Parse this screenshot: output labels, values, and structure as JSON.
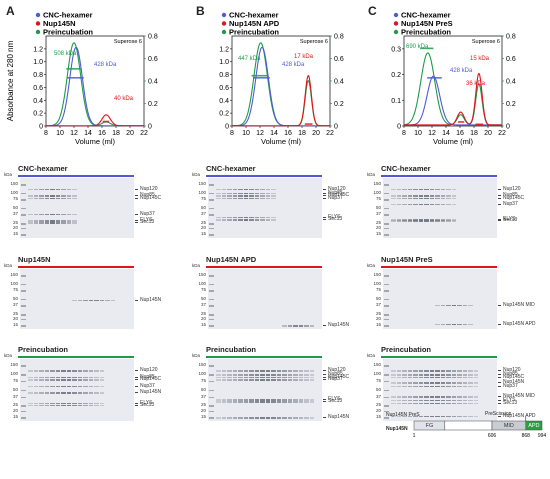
{
  "panels": [
    {
      "letter": "A",
      "legend": [
        {
          "label": "CNC-hexamer",
          "color": "#4f5bd5"
        },
        {
          "label": "Nup145N",
          "color": "#e3121b"
        },
        {
          "label": "Preincubation",
          "color": "#1e9b4a"
        }
      ],
      "column": "Superose 6",
      "peak_labels": [
        {
          "text": "508 kDa",
          "color": "#1e9b4a"
        },
        {
          "text": "428 kDa",
          "color": "#4f5bd5"
        },
        {
          "text": "40 kDa",
          "color": "#e3121b"
        }
      ]
    },
    {
      "letter": "B",
      "legend": [
        {
          "label": "CNC-hexamer",
          "color": "#4f5bd5"
        },
        {
          "label": "Nup145N APD",
          "color": "#e3121b"
        },
        {
          "label": "Preincubation",
          "color": "#1e9b4a"
        }
      ],
      "column": "Superose 6",
      "peak_labels": [
        {
          "text": "447 kDa",
          "color": "#1e9b4a"
        },
        {
          "text": "428 kDa",
          "color": "#4f5bd5"
        },
        {
          "text": "17 kDa",
          "color": "#e3121b"
        }
      ]
    },
    {
      "letter": "C",
      "legend": [
        {
          "label": "CNC-hexamer",
          "color": "#4f5bd5"
        },
        {
          "label": "Nup145N PreS",
          "color": "#e3121b"
        },
        {
          "label": "Preincubation",
          "color": "#1e9b4a"
        }
      ],
      "column": "Superose 6",
      "peak_labels": [
        {
          "text": "690 kDa",
          "color": "#1e9b4a"
        },
        {
          "text": "428 kDa",
          "color": "#4f5bd5"
        },
        {
          "text": "36 kDa",
          "color": "#e3121b"
        },
        {
          "text": "15 kDa",
          "color": "#e3121b"
        }
      ]
    }
  ],
  "axes": {
    "ylabel_left": "Absorbance at 280 nm",
    "ylabel_right": "Molecular Mass (MDa)",
    "xlabel": "Volume (ml)"
  },
  "chart_data": [
    {
      "type": "line",
      "title": "",
      "xlabel": "Volume (ml)",
      "ylabel": "Absorbance at 280 nm",
      "y2label": "Molecular Mass (MDa)",
      "xlim": [
        8,
        22
      ],
      "ylim": [
        0,
        1.4
      ],
      "y2lim": [
        0,
        0.8
      ],
      "xticks": [
        8,
        10,
        12,
        14,
        16,
        18,
        20,
        22
      ],
      "yticks": [
        0,
        0.2,
        0.4,
        0.6,
        0.8,
        1.0,
        1.2
      ],
      "y2ticks": [
        0,
        0.2,
        0.4,
        0.6,
        0.8
      ],
      "yticklabels": [
        "0",
        "0.2",
        "0.4",
        "0.6",
        "0.8",
        "1.0",
        "1.2"
      ],
      "series": [
        {
          "name": "CNC-hexamer",
          "color": "#4f5bd5",
          "peaks": [
            {
              "center": 12.3,
              "height": 1.22,
              "width": 0.9
            }
          ]
        },
        {
          "name": "Nup145N",
          "color": "#e3121b",
          "peaks": [
            {
              "center": 16.6,
              "height": 0.17,
              "width": 0.6
            }
          ]
        },
        {
          "name": "Preincubation",
          "color": "#1e9b4a",
          "peaks": [
            {
              "center": 12.0,
              "height": 1.29,
              "width": 0.95
            },
            {
              "center": 16.6,
              "height": 0.06,
              "width": 0.6
            }
          ]
        }
      ],
      "mass_segments": [
        {
          "series": "Preincubation",
          "x": [
            10.9,
            13.0
          ],
          "y": 0.508
        },
        {
          "series": "CNC-hexamer",
          "x": [
            11.0,
            13.4
          ],
          "y": 0.428
        },
        {
          "series": "Nup145N",
          "x": [
            16.1,
            17.0
          ],
          "y": 0.04
        }
      ]
    },
    {
      "type": "line",
      "title": "",
      "xlabel": "Volume (ml)",
      "ylabel": "Absorbance at 280 nm",
      "y2label": "Molecular Mass (MDa)",
      "xlim": [
        8,
        22
      ],
      "ylim": [
        0,
        1.4
      ],
      "y2lim": [
        0,
        0.8
      ],
      "xticks": [
        8,
        10,
        12,
        14,
        16,
        18,
        20,
        22
      ],
      "yticks": [
        0,
        0.2,
        0.4,
        0.6,
        0.8,
        1.0,
        1.2
      ],
      "y2ticks": [
        0,
        0.2,
        0.4,
        0.6,
        0.8
      ],
      "yticklabels": [
        "0",
        "0.2",
        "0.4",
        "0.6",
        "0.8",
        "1.0",
        "1.2"
      ],
      "series": [
        {
          "name": "CNC-hexamer",
          "color": "#4f5bd5",
          "peaks": [
            {
              "center": 12.3,
              "height": 1.22,
              "width": 0.9
            }
          ]
        },
        {
          "name": "Nup145N APD",
          "color": "#e3121b",
          "peaks": [
            {
              "center": 18.9,
              "height": 0.78,
              "width": 0.45
            }
          ]
        },
        {
          "name": "Preincubation",
          "color": "#1e9b4a",
          "peaks": [
            {
              "center": 12.1,
              "height": 1.29,
              "width": 0.95
            },
            {
              "center": 18.9,
              "height": 0.7,
              "width": 0.45
            }
          ]
        }
      ],
      "mass_segments": [
        {
          "series": "Preincubation",
          "x": [
            10.8,
            13.0
          ],
          "y": 0.447
        },
        {
          "series": "CNC-hexamer",
          "x": [
            11.0,
            13.4
          ],
          "y": 0.428
        },
        {
          "series": "Nup145N APD",
          "x": [
            18.4,
            19.5
          ],
          "y": 0.017
        }
      ]
    },
    {
      "type": "line",
      "title": "",
      "xlabel": "Volume (ml)",
      "ylabel": "Absorbance at 280 nm",
      "y2label": "Molecular Mass (MDa)",
      "xlim": [
        8,
        22
      ],
      "ylim": [
        0,
        0.35
      ],
      "y2lim": [
        0,
        0.8
      ],
      "xticks": [
        8,
        10,
        12,
        14,
        16,
        18,
        20,
        22
      ],
      "yticks": [
        0,
        0.1,
        0.2,
        0.3
      ],
      "y2ticks": [
        0,
        0.2,
        0.4,
        0.6,
        0.8
      ],
      "yticklabels": [
        "0",
        "0.1",
        "0.2",
        "0.3"
      ],
      "series": [
        {
          "name": "CNC-hexamer",
          "color": "#4f5bd5",
          "peaks": [
            {
              "center": 12.2,
              "height": 0.19,
              "width": 0.9
            }
          ]
        },
        {
          "name": "Nup145N PreS",
          "color": "#e3121b",
          "peaks": [
            {
              "center": 16.1,
              "height": 0.05,
              "width": 0.5
            },
            {
              "center": 18.7,
              "height": 0.2,
              "width": 0.45
            }
          ]
        },
        {
          "name": "Preincubation",
          "color": "#1e9b4a",
          "peaks": [
            {
              "center": 11.4,
              "height": 0.28,
              "width": 1.0
            },
            {
              "center": 16.1,
              "height": 0.04,
              "width": 0.5
            },
            {
              "center": 18.7,
              "height": 0.16,
              "width": 0.45
            }
          ]
        }
      ],
      "mass_segments": [
        {
          "series": "Preincubation",
          "x": [
            10.3,
            12.2
          ],
          "y": 0.69
        },
        {
          "series": "CNC-hexamer",
          "x": [
            11.3,
            13.4
          ],
          "y": 0.428
        },
        {
          "series": "Nup145N PreS",
          "x": [
            15.7,
            16.6
          ],
          "y": 0.036
        },
        {
          "series": "Nup145N PreS",
          "x": [
            18.2,
            19.3
          ],
          "y": 0.015
        }
      ]
    }
  ],
  "gels": {
    "kda_label": "kDa",
    "A": [
      {
        "title": "CNC-hexamer",
        "bar_color": "#4f5bd5",
        "markers": [
          "150",
          "100",
          "75",
          "50",
          "37",
          "25",
          "20",
          "15"
        ],
        "lanes": [
          "Nup120",
          "Nup85",
          "Nup145C",
          "Nup37",
          "ELYS",
          "Sec13"
        ],
        "band_kda": [
          120,
          90,
          80,
          38,
          28,
          26
        ],
        "band_lanes": [
          1,
          9
        ]
      },
      {
        "title": "Nup145N",
        "bar_color": "#e3121b",
        "markers": [
          "150",
          "100",
          "75",
          "50",
          "37",
          "25",
          "20",
          "15"
        ],
        "lanes": [
          "Nup145N"
        ],
        "band_kda": [
          48
        ],
        "band_lanes": [
          9,
          16
        ]
      },
      {
        "title": "Preincubation",
        "bar_color": "#1e9b4a",
        "markers": [
          "150",
          "100",
          "75",
          "50",
          "37",
          "25",
          "20",
          "15"
        ],
        "lanes": [
          "Nup120",
          "Nup85",
          "Nup145C",
          "Nup37",
          "Nup145N",
          "ELYS",
          "Sec13"
        ],
        "band_kda": [
          120,
          90,
          80,
          60,
          45,
          28,
          26
        ],
        "band_lanes": [
          1,
          14
        ]
      }
    ],
    "B": [
      {
        "title": "CNC-hexamer",
        "bar_color": "#4f5bd5",
        "markers": [
          "150",
          "100",
          "75",
          "50",
          "37",
          "25",
          "20",
          "15"
        ],
        "lanes": [
          "Nup120",
          "Nup85",
          "Nup145C",
          "Nup37",
          "ELYS",
          "Sec13"
        ],
        "band_kda": [
          120,
          100,
          90,
          80,
          33,
          30
        ],
        "band_lanes": [
          1,
          11
        ]
      },
      {
        "title": "Nup145N APD",
        "bar_color": "#e3121b",
        "markers": [
          "150",
          "100",
          "75",
          "50",
          "37",
          "25",
          "20",
          "15"
        ],
        "lanes": [
          "Nup145N"
        ],
        "band_kda": [
          15
        ],
        "band_lanes": [
          13,
          18
        ]
      },
      {
        "title": "Preincubation",
        "bar_color": "#1e9b4a",
        "markers": [
          "150",
          "100",
          "75",
          "50",
          "37",
          "25",
          "20",
          "15"
        ],
        "lanes": [
          "Nup120",
          "Nup85",
          "Nup145C",
          "Nup37",
          "ELYS",
          "Sec13",
          "Nup145N"
        ],
        "band_kda": [
          120,
          100,
          90,
          80,
          33,
          30,
          15
        ],
        "band_lanes": [
          1,
          18
        ]
      }
    ],
    "C": [
      {
        "title": "CNC-hexamer",
        "bar_color": "#4f5bd5",
        "markers": [
          "150",
          "100",
          "75",
          "50",
          "37",
          "25",
          "20",
          "15"
        ],
        "lanes": [
          "Nup120",
          "Nup85",
          "Nup145C",
          "Nup37",
          "ELYS",
          "Sec13"
        ],
        "band_kda": [
          120,
          90,
          80,
          60,
          30,
          28
        ],
        "band_lanes": [
          1,
          12
        ]
      },
      {
        "title": "Nup145N PreS",
        "bar_color": "#e3121b",
        "markers": [
          "150",
          "100",
          "75",
          "50",
          "37",
          "25",
          "20",
          "15"
        ],
        "lanes": [
          "Nup145N MID",
          "Nup145N APD"
        ],
        "band_kda": [
          38,
          16
        ],
        "band_lanes": [
          9,
          15
        ]
      },
      {
        "title": "Preincubation",
        "bar_color": "#1e9b4a",
        "markers": [
          "150",
          "100",
          "75",
          "50",
          "37",
          "25",
          "20",
          "15"
        ],
        "lanes": [
          "Nup120",
          "Nup85",
          "Nup145C",
          "Nup145N",
          "Nup37",
          "Nup145N MID",
          "ELYS",
          "Sec13",
          "Nup145N APD"
        ],
        "band_kda": [
          120,
          100,
          90,
          70,
          60,
          38,
          32,
          28,
          16
        ],
        "band_lanes": [
          1,
          16
        ]
      }
    ]
  },
  "schematic": {
    "construct_label": "Nup145N PreS",
    "protein_label": "Nup145N",
    "cleavage_label": "PreScission",
    "domains": [
      {
        "name": "FG",
        "color": "#dfe4ea",
        "from": 1,
        "to": 240
      },
      {
        "name": "",
        "color": "#ffffff",
        "from": 240,
        "to": 606
      },
      {
        "name": "MID",
        "color": "#c9cdd3",
        "from": 606,
        "to": 868
      },
      {
        "name": "APD",
        "color": "#2f9e44",
        "from": 868,
        "to": 994
      }
    ],
    "positions": [
      "1",
      "606",
      "868",
      "994"
    ]
  }
}
